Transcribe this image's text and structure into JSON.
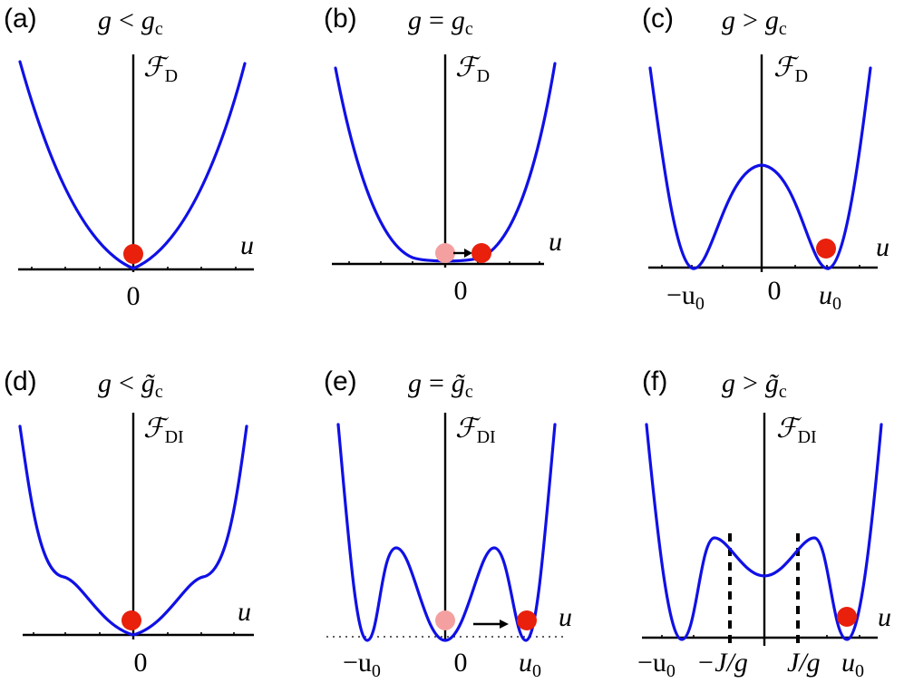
{
  "panels": [
    {
      "id": "a",
      "tag": "(a)",
      "cond": {
        "g": "g",
        "op": "<",
        "base": "g",
        "tilde": false,
        "sub": "c"
      },
      "func": {
        "base": "ℱ",
        "sub": "D"
      },
      "axis_var": "u",
      "ticks": {
        "zero": "0"
      }
    },
    {
      "id": "b",
      "tag": "(b)",
      "cond": {
        "g": "g",
        "op": "=",
        "base": "g",
        "tilde": false,
        "sub": "c"
      },
      "func": {
        "base": "ℱ",
        "sub": "D"
      },
      "axis_var": "u",
      "ticks": {
        "zero": "0"
      }
    },
    {
      "id": "c",
      "tag": "(c)",
      "cond": {
        "g": "g",
        "op": ">",
        "base": "g",
        "tilde": false,
        "sub": "c"
      },
      "func": {
        "base": "ℱ",
        "sub": "D"
      },
      "axis_var": "u",
      "ticks": {
        "zero": "0",
        "neg_u0": "−u",
        "pos_u0": "u",
        "u0_sub": "0"
      }
    },
    {
      "id": "d",
      "tag": "(d)",
      "cond": {
        "g": "g",
        "op": "<",
        "base": "g̃",
        "tilde": true,
        "sub": "c"
      },
      "func": {
        "base": "ℱ",
        "sub": "DI"
      },
      "axis_var": "u",
      "ticks": {
        "zero": "0"
      }
    },
    {
      "id": "e",
      "tag": "(e)",
      "cond": {
        "g": "g",
        "op": "=",
        "base": "g̃",
        "tilde": true,
        "sub": "c"
      },
      "func": {
        "base": "ℱ",
        "sub": "DI"
      },
      "axis_var": "u",
      "ticks": {
        "zero": "0",
        "neg_u0": "−u",
        "pos_u0": "u",
        "u0_sub": "0"
      }
    },
    {
      "id": "f",
      "tag": "(f)",
      "cond": {
        "g": "g",
        "op": ">",
        "base": "g̃",
        "tilde": true,
        "sub": "c"
      },
      "func": {
        "base": "ℱ",
        "sub": "DI"
      },
      "axis_var": "u",
      "ticks": {
        "neg_u0": "−u",
        "pos_u0": "u",
        "u0_sub": "0",
        "neg_jg": "−J/g",
        "pos_jg": "J/g"
      }
    }
  ],
  "colors": {
    "curve": "#1010e6",
    "ball": "#e8200c",
    "ball_initial": "#f4a0a0",
    "axis": "#000000"
  }
}
